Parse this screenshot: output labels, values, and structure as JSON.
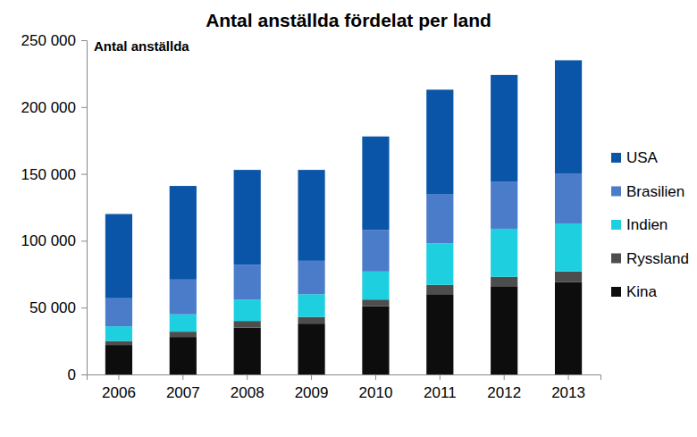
{
  "chart_data": {
    "type": "bar",
    "stacked": true,
    "legend": "right",
    "title": "Antal anställda fördelat per land",
    "y_label": "Antal anställda",
    "categories": [
      "2006",
      "2007",
      "2008",
      "2009",
      "2010",
      "2011",
      "2012",
      "2013"
    ],
    "series": [
      {
        "name": "Kina",
        "color": "#0d0d0d",
        "values": [
          22000,
          28000,
          35000,
          38000,
          51000,
          60000,
          66000,
          69000
        ]
      },
      {
        "name": "Ryssland",
        "color": "#4d4d4d",
        "values": [
          3000,
          4000,
          5000,
          5000,
          5000,
          7000,
          7000,
          8000
        ]
      },
      {
        "name": "Indien",
        "color": "#1ecfe0",
        "values": [
          11000,
          13000,
          16000,
          17000,
          21000,
          31000,
          36000,
          36000
        ]
      },
      {
        "name": "Brasilien",
        "color": "#4a7cc9",
        "values": [
          21000,
          26000,
          26000,
          25000,
          31000,
          37000,
          35000,
          37000
        ]
      },
      {
        "name": "USA",
        "color": "#0a55a8",
        "values": [
          63000,
          70000,
          71000,
          68000,
          70000,
          78000,
          80000,
          85000
        ]
      }
    ],
    "ylim": [
      0,
      250000
    ],
    "yticks": [
      0,
      {
        "value": 50000,
        "label": "50 000"
      },
      {
        "value": 100000,
        "label": "100 000"
      },
      {
        "value": 150000,
        "label": "150 000"
      },
      {
        "value": 200000,
        "label": "200 000"
      },
      {
        "value": 250000,
        "label": "250 000"
      }
    ],
    "grid": false
  }
}
